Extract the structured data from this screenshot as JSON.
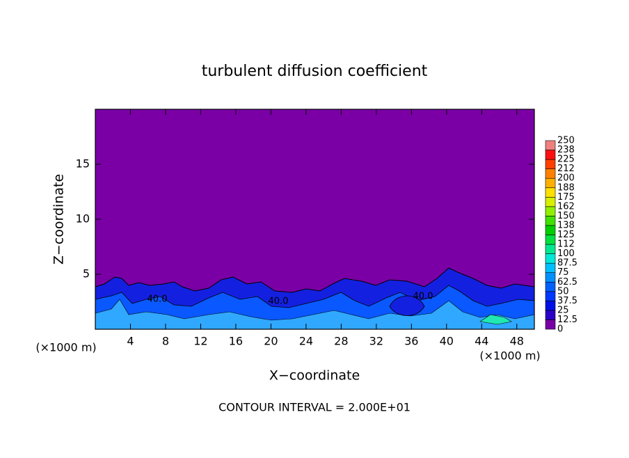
{
  "chart_data": {
    "type": "contour",
    "title": "turbulent diffusion coefficient",
    "x_label": "X−coordinate",
    "y_label": "Z−coordinate",
    "x_unit_left": "(×1000 m)",
    "x_unit_right": "(×1000 m)",
    "note": "CONTOUR INTERVAL = 2.000E+01",
    "xlim": [
      0,
      50
    ],
    "xticks": [
      4,
      8,
      12,
      16,
      20,
      24,
      28,
      32,
      36,
      40,
      44,
      48
    ],
    "ylim": [
      0,
      20
    ],
    "yticks": [
      5,
      10,
      15
    ],
    "background_color": "#7a00a6",
    "contour_labels": [
      "40.0",
      "40.0",
      "40.0"
    ],
    "colorbar": {
      "levels": [
        0,
        12.5,
        25,
        37.5,
        50,
        62.5,
        75,
        87.5,
        100,
        112,
        125,
        138,
        150,
        162,
        175,
        188,
        200,
        212,
        225,
        238,
        250
      ],
      "colors": [
        "#7a00a6",
        "#2a00c8",
        "#0010e6",
        "#0038ff",
        "#0060ff",
        "#0090ff",
        "#00c0ff",
        "#00e8d8",
        "#00e890",
        "#00e040",
        "#00d000",
        "#40e000",
        "#90f000",
        "#d8f000",
        "#ffe000",
        "#ffb000",
        "#ff8000",
        "#ff4000",
        "#ff1010",
        "#f08080"
      ]
    }
  }
}
